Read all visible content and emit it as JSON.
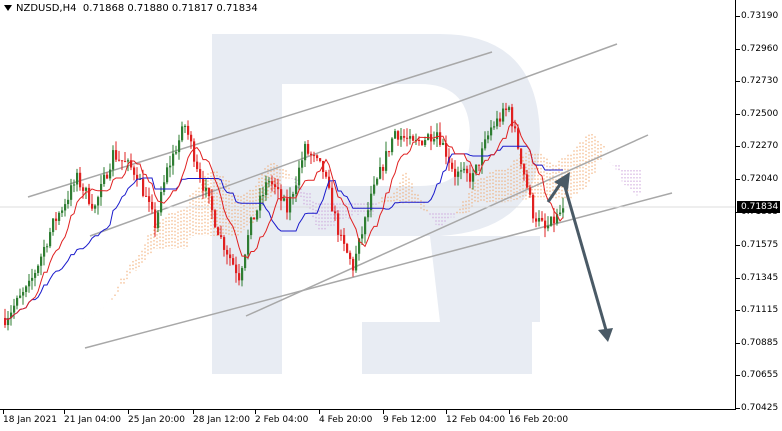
{
  "header": {
    "symbol": "NZDUSD,H4",
    "ohlc": "0.71868 0.71880 0.71817 0.71834"
  },
  "current_price_label": "0.71834",
  "colors": {
    "bull": "#2e7d32",
    "bear": "#e02020",
    "tenkan": "#e02020",
    "kijun": "#1a1acc",
    "cloud_orange": "#f0a060",
    "cloud_violet": "#c89ad8",
    "channel": "#a8a8a8",
    "arrow": "#4a5a66",
    "watermark": "#e8ecf3"
  },
  "chart_data": {
    "type": "candlestick",
    "instrument": "NZDUSD",
    "timeframe": "H4",
    "ylim": [
      0.70425,
      0.7319
    ],
    "y_ticks": [
      "0.73190",
      "0.72960",
      "0.72730",
      "0.72500",
      "0.72270",
      "0.72040",
      "0.71805",
      "0.71575",
      "0.71345",
      "0.71115",
      "0.70885",
      "0.70655",
      "0.70425"
    ],
    "x_ticks": [
      "18 Jan 2021",
      "21 Jan 04:00",
      "25 Jan 20:00",
      "28 Jan 12:00",
      "2 Feb 04:00",
      "4 Feb 20:00",
      "9 Feb 12:00",
      "12 Feb 04:00",
      "16 Feb 20:00"
    ],
    "last_price": 0.71834,
    "indicators": [
      "Ichimoku Kinko Hyo"
    ],
    "annotations": [
      "trend channel lines",
      "forecast arrow up then down"
    ]
  }
}
